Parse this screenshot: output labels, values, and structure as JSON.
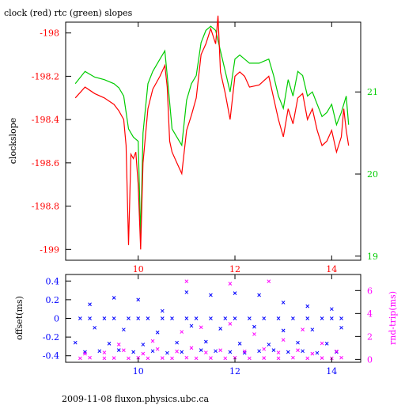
{
  "title": "clock (red) rtc (green) slopes",
  "footer": "2009-11-08 fluxon.physics.ubc.ca",
  "colors": {
    "red": "#ff0000",
    "green": "#00cc00",
    "blue": "#0000ff",
    "magenta": "#ff00ff",
    "axis": "#000000"
  },
  "chart_data": [
    {
      "type": "line",
      "title": "clock (red) rtc (green) slopes",
      "ylabel": "clockslope",
      "xlim": [
        8.5,
        14.6
      ],
      "ylim": [
        -199.05,
        -197.95
      ],
      "y2lim": [
        18.95,
        21.85
      ],
      "x_ticks": [
        "10",
        "12",
        "14"
      ],
      "y_ticks": [
        "-198",
        "-198.2",
        "-198.4",
        "-198.6",
        "-198.8",
        "-199"
      ],
      "y2_ticks": [
        "19",
        "20",
        "21"
      ],
      "series": [
        {
          "name": "clock",
          "color": "#ff0000",
          "axis": "left",
          "x": [
            8.7,
            8.9,
            9.1,
            9.3,
            9.5,
            9.6,
            9.7,
            9.75,
            9.8,
            9.85,
            9.9,
            9.95,
            10.0,
            10.05,
            10.1,
            10.2,
            10.3,
            10.45,
            10.55,
            10.6,
            10.65,
            10.7,
            10.8,
            10.9,
            11.0,
            11.1,
            11.2,
            11.3,
            11.4,
            11.5,
            11.6,
            11.65,
            11.7,
            11.8,
            11.9,
            12.0,
            12.1,
            12.2,
            12.3,
            12.5,
            12.7,
            12.8,
            12.9,
            13.0,
            13.1,
            13.2,
            13.3,
            13.4,
            13.5,
            13.6,
            13.7,
            13.8,
            13.9,
            14.0,
            14.1,
            14.2,
            14.25,
            14.3,
            14.35
          ],
          "y": [
            -198.3,
            -198.25,
            -198.28,
            -198.3,
            -198.33,
            -198.36,
            -198.4,
            -198.52,
            -198.98,
            -198.56,
            -198.58,
            -198.55,
            -198.7,
            -199.0,
            -198.6,
            -198.35,
            -198.26,
            -198.2,
            -198.15,
            -198.25,
            -198.5,
            -198.55,
            -198.6,
            -198.65,
            -198.45,
            -198.38,
            -198.3,
            -198.1,
            -198.05,
            -197.98,
            -198.05,
            -197.92,
            -198.18,
            -198.28,
            -198.4,
            -198.2,
            -198.18,
            -198.2,
            -198.25,
            -198.24,
            -198.2,
            -198.3,
            -198.4,
            -198.48,
            -198.35,
            -198.42,
            -198.3,
            -198.28,
            -198.4,
            -198.35,
            -198.45,
            -198.52,
            -198.5,
            -198.45,
            -198.55,
            -198.48,
            -198.35,
            -198.45,
            -198.52
          ]
        },
        {
          "name": "rtc",
          "color": "#00cc00",
          "axis": "right",
          "x": [
            8.7,
            8.9,
            9.1,
            9.3,
            9.5,
            9.6,
            9.7,
            9.8,
            9.9,
            10.0,
            10.05,
            10.1,
            10.2,
            10.3,
            10.45,
            10.55,
            10.6,
            10.7,
            10.8,
            10.9,
            11.0,
            11.1,
            11.2,
            11.3,
            11.4,
            11.5,
            11.6,
            11.7,
            11.8,
            11.9,
            12.0,
            12.1,
            12.2,
            12.3,
            12.5,
            12.7,
            12.8,
            12.9,
            13.0,
            13.1,
            13.2,
            13.3,
            13.4,
            13.5,
            13.6,
            13.7,
            13.8,
            13.9,
            14.0,
            14.1,
            14.2,
            14.3,
            14.35
          ],
          "y": [
            21.1,
            21.25,
            21.18,
            21.15,
            21.1,
            21.05,
            20.95,
            20.55,
            20.45,
            20.4,
            19.25,
            20.5,
            21.1,
            21.25,
            21.4,
            21.5,
            21.2,
            20.55,
            20.45,
            20.35,
            20.9,
            21.1,
            21.2,
            21.6,
            21.75,
            21.8,
            21.75,
            21.5,
            21.25,
            21.0,
            21.4,
            21.45,
            21.4,
            21.35,
            21.35,
            21.4,
            21.2,
            20.95,
            20.8,
            21.15,
            20.95,
            21.25,
            21.2,
            20.95,
            21.0,
            20.85,
            20.7,
            20.75,
            20.85,
            20.6,
            20.75,
            20.95,
            20.6
          ]
        }
      ]
    },
    {
      "type": "scatter",
      "ylabel": "offset(ms)",
      "y2label": "rnd-trip(ms)",
      "xlim": [
        8.5,
        14.6
      ],
      "ylim": [
        -0.47,
        0.47
      ],
      "y2lim": [
        -0.25,
        7.4
      ],
      "x_ticks": [
        "10",
        "12",
        "14"
      ],
      "y_ticks": [
        "0.4",
        "0.2",
        "0",
        "-0.2",
        "-0.4"
      ],
      "y2_ticks": [
        "6",
        "4",
        "2",
        "0"
      ],
      "series": [
        {
          "name": "offset",
          "color": "#0000ff",
          "axis": "left",
          "x": [
            8.8,
            9.0,
            9.3,
            9.5,
            9.8,
            10.0,
            10.2,
            10.5,
            10.7,
            11.0,
            11.2,
            11.5,
            11.8,
            12.0,
            12.3,
            12.6,
            12.9,
            13.2,
            13.5,
            13.8,
            14.0,
            14.2,
            8.9,
            9.2,
            9.6,
            9.9,
            10.3,
            10.6,
            10.9,
            11.3,
            11.6,
            11.9,
            12.2,
            12.5,
            12.8,
            13.1,
            13.4,
            13.7,
            14.1,
            8.7,
            9.4,
            10.1,
            10.8,
            11.4,
            12.1,
            12.7,
            13.3,
            13.9,
            9.1,
            9.7,
            10.4,
            11.1,
            11.7,
            12.4,
            13.0,
            13.6,
            14.2,
            9.0,
            10.0,
            11.0,
            12.0,
            13.0,
            14.0,
            9.5,
            10.5,
            11.5,
            12.5,
            13.5
          ],
          "y": [
            0,
            0,
            0,
            0,
            0,
            0,
            0,
            0,
            0,
            0,
            0,
            0,
            0,
            0,
            0,
            0,
            0,
            0,
            0,
            0,
            0,
            0,
            -0.36,
            -0.35,
            -0.34,
            -0.36,
            -0.35,
            -0.37,
            -0.36,
            -0.34,
            -0.35,
            -0.36,
            -0.37,
            -0.35,
            -0.34,
            -0.36,
            -0.35,
            -0.37,
            -0.36,
            -0.26,
            -0.27,
            -0.28,
            -0.26,
            -0.25,
            -0.27,
            -0.28,
            -0.26,
            -0.27,
            -0.1,
            -0.12,
            -0.15,
            -0.08,
            -0.11,
            -0.09,
            -0.13,
            -0.12,
            -0.1,
            0.15,
            0.2,
            0.28,
            0.27,
            0.17,
            0.1,
            0.22,
            0.08,
            0.25,
            0.25,
            0.13
          ]
        },
        {
          "name": "rnd-trip",
          "color": "#ff00ff",
          "axis": "right",
          "x": [
            8.8,
            9.0,
            9.3,
            9.5,
            9.8,
            10.0,
            10.2,
            10.5,
            10.7,
            11.0,
            11.2,
            11.5,
            11.8,
            12.0,
            12.3,
            12.6,
            12.9,
            13.2,
            13.5,
            13.8,
            14.0,
            14.2,
            8.9,
            9.3,
            9.7,
            10.1,
            10.4,
            10.8,
            11.1,
            11.4,
            11.7,
            12.2,
            12.6,
            12.9,
            13.3,
            13.6,
            14.1,
            9.6,
            10.3,
            10.9,
            11.3,
            11.9,
            12.4,
            13.0,
            13.4,
            13.8,
            11.0,
            11.9,
            12.7
          ],
          "y": [
            0.1,
            0.15,
            0.1,
            0.12,
            0.1,
            0.15,
            0.1,
            0.12,
            0.1,
            0.15,
            0.1,
            0.12,
            0.1,
            0.15,
            0.1,
            0.12,
            0.1,
            0.15,
            0.1,
            0.12,
            0.1,
            0.15,
            0.5,
            0.6,
            0.8,
            0.5,
            0.9,
            0.7,
            1.0,
            0.6,
            0.8,
            0.7,
            0.9,
            0.6,
            0.8,
            0.5,
            0.7,
            1.3,
            1.6,
            2.4,
            2.8,
            3.1,
            2.2,
            1.7,
            2.6,
            1.4,
            6.8,
            6.6,
            6.8
          ]
        }
      ]
    }
  ]
}
